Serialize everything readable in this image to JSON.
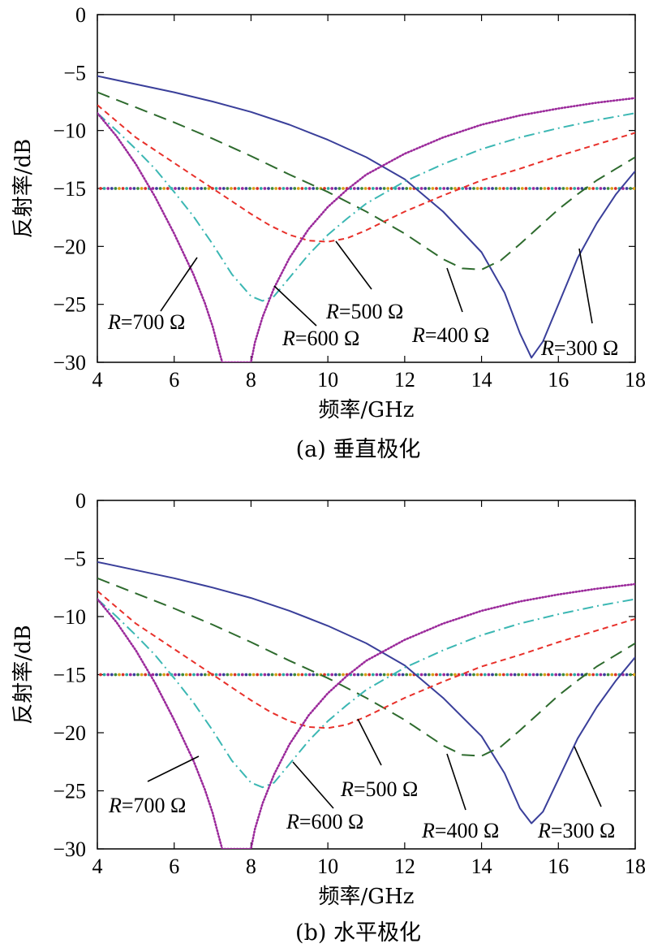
{
  "chart_data": [
    {
      "type": "line",
      "caption": "(a) 垂直极化",
      "xlabel": "频率/GHz",
      "ylabel": "反射率/dB",
      "xlim": [
        4,
        18
      ],
      "ylim": [
        -30,
        0
      ],
      "xticks": [
        "4",
        "6",
        "8",
        "10",
        "12",
        "14",
        "16",
        "18"
      ],
      "yticks": [
        "0",
        "-5",
        "-10",
        "-15",
        "-20",
        "-25",
        "-30"
      ],
      "reference_line": {
        "y": -15
      },
      "series": [
        {
          "name": "R=300 Ω",
          "r_prefix": "R",
          "r_value": "=300 Ω",
          "color": "#3a3f9a",
          "style": "solid",
          "x": [
            4,
            5,
            6,
            7,
            8,
            9,
            10,
            11,
            12,
            13,
            14,
            14.6,
            15.0,
            15.3,
            15.6,
            16,
            16.5,
            17,
            17.5,
            18
          ],
          "y": [
            -5.3,
            -6.0,
            -6.7,
            -7.5,
            -8.4,
            -9.5,
            -10.8,
            -12.3,
            -14.2,
            -17.0,
            -20.5,
            -24.0,
            -27.5,
            -29.6,
            -28.2,
            -25.0,
            -21.0,
            -18.0,
            -15.5,
            -13.5
          ]
        },
        {
          "name": "R=400 Ω",
          "r_prefix": "R",
          "r_value": "=400 Ω",
          "color": "#2e6b2e",
          "style": "longdash",
          "x": [
            4,
            5,
            6,
            7,
            8,
            9,
            10,
            11,
            12,
            12.5,
            13,
            13.5,
            14,
            14.5,
            15,
            15.5,
            16,
            16.5,
            17,
            17.5,
            18
          ],
          "y": [
            -6.7,
            -8.0,
            -9.3,
            -10.7,
            -12.2,
            -13.8,
            -15.3,
            -17.0,
            -18.9,
            -20.0,
            -21.1,
            -21.9,
            -22.0,
            -21.2,
            -19.8,
            -18.3,
            -16.8,
            -15.5,
            -14.3,
            -13.3,
            -12.3
          ]
        },
        {
          "name": "R=500 Ω",
          "r_prefix": "R",
          "r_value": "=500 Ω",
          "color": "#e8302a",
          "style": "dash",
          "x": [
            4,
            5,
            6,
            7,
            8,
            8.5,
            9,
            9.5,
            10,
            10.5,
            11,
            11.5,
            12,
            13,
            14,
            15,
            16,
            17,
            18
          ],
          "y": [
            -7.8,
            -10.6,
            -12.8,
            -15.0,
            -17.2,
            -18.2,
            -19.0,
            -19.5,
            -19.6,
            -19.3,
            -18.6,
            -17.8,
            -17.0,
            -15.6,
            -14.3,
            -13.3,
            -12.2,
            -11.2,
            -10.2
          ]
        },
        {
          "name": "R=600 Ω",
          "r_prefix": "R",
          "r_value": "=600 Ω",
          "color": "#3bb7b3",
          "style": "dashdot",
          "x": [
            4,
            4.5,
            5,
            5.5,
            6,
            6.5,
            7,
            7.5,
            8,
            8.3,
            8.6,
            9,
            9.5,
            10,
            10.5,
            11,
            12,
            13,
            14,
            15,
            16,
            17,
            18
          ],
          "y": [
            -8.5,
            -10.0,
            -11.6,
            -13.3,
            -15.3,
            -17.4,
            -19.8,
            -22.4,
            -24.3,
            -24.7,
            -24.3,
            -22.7,
            -20.7,
            -19.0,
            -17.6,
            -16.3,
            -14.4,
            -12.9,
            -11.6,
            -10.6,
            -9.8,
            -9.1,
            -8.5
          ]
        },
        {
          "name": "R=700 Ω",
          "r_prefix": "R",
          "r_value": "=700 Ω",
          "color": "#9b2a9b",
          "style": "dot",
          "x": [
            4,
            4.5,
            5,
            5.5,
            6,
            6.5,
            6.8,
            7.0,
            7.15,
            7.25,
            8.0,
            8.1,
            8.3,
            8.6,
            9,
            9.5,
            10,
            10.5,
            11,
            12,
            13,
            14,
            15,
            16,
            17,
            18
          ],
          "y": [
            -8.5,
            -10.5,
            -12.9,
            -15.7,
            -18.9,
            -22.4,
            -24.9,
            -26.9,
            -28.8,
            -30.0,
            -30.0,
            -28.3,
            -26.1,
            -23.6,
            -21.0,
            -18.5,
            -16.6,
            -15.1,
            -13.8,
            -12.0,
            -10.6,
            -9.5,
            -8.7,
            -8.1,
            -7.6,
            -7.2
          ]
        }
      ]
    },
    {
      "type": "line",
      "caption": "(b) 水平极化",
      "xlabel": "频率/GHz",
      "ylabel": "反射率/dB",
      "xlim": [
        4,
        18
      ],
      "ylim": [
        -30,
        0
      ],
      "xticks": [
        "4",
        "6",
        "8",
        "10",
        "12",
        "14",
        "16",
        "18"
      ],
      "yticks": [
        "0",
        "-5",
        "-10",
        "-15",
        "-20",
        "-25",
        "-30"
      ],
      "reference_line": {
        "y": -15
      },
      "series": [
        {
          "name": "R=300 Ω",
          "r_prefix": "R",
          "r_value": "=300 Ω",
          "color": "#3a3f9a",
          "style": "solid",
          "x": [
            4,
            5,
            6,
            7,
            8,
            9,
            10,
            11,
            12,
            13,
            14,
            14.6,
            15.0,
            15.3,
            15.6,
            16,
            16.5,
            17,
            17.5,
            18
          ],
          "y": [
            -5.3,
            -6.0,
            -6.7,
            -7.5,
            -8.4,
            -9.5,
            -10.8,
            -12.3,
            -14.2,
            -17.0,
            -20.3,
            -23.5,
            -26.5,
            -27.8,
            -26.8,
            -24.0,
            -20.5,
            -17.8,
            -15.5,
            -13.5
          ]
        },
        {
          "name": "R=400 Ω",
          "r_prefix": "R",
          "r_value": "=400 Ω",
          "color": "#2e6b2e",
          "style": "longdash",
          "x": [
            4,
            5,
            6,
            7,
            8,
            9,
            10,
            11,
            12,
            12.5,
            13,
            13.5,
            14,
            14.5,
            15,
            15.5,
            16,
            16.5,
            17,
            17.5,
            18
          ],
          "y": [
            -6.7,
            -8.0,
            -9.3,
            -10.7,
            -12.2,
            -13.8,
            -15.3,
            -17.0,
            -18.9,
            -20.0,
            -21.1,
            -21.9,
            -22.0,
            -21.2,
            -19.8,
            -18.3,
            -16.8,
            -15.5,
            -14.3,
            -13.3,
            -12.3
          ]
        },
        {
          "name": "R=500 Ω",
          "r_prefix": "R",
          "r_value": "=500 Ω",
          "color": "#e8302a",
          "style": "dash",
          "x": [
            4,
            5,
            6,
            7,
            8,
            8.5,
            9,
            9.5,
            10,
            10.5,
            11,
            11.5,
            12,
            13,
            14,
            15,
            16,
            17,
            18
          ],
          "y": [
            -7.8,
            -10.6,
            -12.8,
            -15.0,
            -17.2,
            -18.2,
            -19.0,
            -19.5,
            -19.6,
            -19.3,
            -18.6,
            -17.8,
            -17.0,
            -15.6,
            -14.3,
            -13.3,
            -12.2,
            -11.2,
            -10.2
          ]
        },
        {
          "name": "R=600 Ω",
          "r_prefix": "R",
          "r_value": "=600 Ω",
          "color": "#3bb7b3",
          "style": "dashdot",
          "x": [
            4,
            4.5,
            5,
            5.5,
            6,
            6.5,
            7,
            7.5,
            8,
            8.3,
            8.6,
            9,
            9.5,
            10,
            10.5,
            11,
            12,
            13,
            14,
            15,
            16,
            17,
            18
          ],
          "y": [
            -8.5,
            -10.0,
            -11.6,
            -13.3,
            -15.3,
            -17.4,
            -19.8,
            -22.4,
            -24.3,
            -24.7,
            -24.3,
            -22.7,
            -20.7,
            -19.0,
            -17.6,
            -16.3,
            -14.4,
            -12.9,
            -11.6,
            -10.6,
            -9.8,
            -9.1,
            -8.5
          ]
        },
        {
          "name": "R=700 Ω",
          "r_prefix": "R",
          "r_value": "=700 Ω",
          "color": "#9b2a9b",
          "style": "dot",
          "x": [
            4,
            4.5,
            5,
            5.5,
            6,
            6.5,
            6.8,
            7.0,
            7.15,
            7.25,
            8.0,
            8.1,
            8.3,
            8.6,
            9,
            9.5,
            10,
            10.5,
            11,
            12,
            13,
            14,
            15,
            16,
            17,
            18
          ],
          "y": [
            -8.5,
            -10.5,
            -12.9,
            -15.7,
            -18.9,
            -22.4,
            -24.9,
            -26.9,
            -28.8,
            -30.0,
            -30.0,
            -28.3,
            -26.1,
            -23.6,
            -21.0,
            -18.5,
            -16.6,
            -15.1,
            -13.8,
            -12.0,
            -10.6,
            -9.5,
            -8.7,
            -8.1,
            -7.6,
            -7.2
          ]
        }
      ]
    }
  ]
}
